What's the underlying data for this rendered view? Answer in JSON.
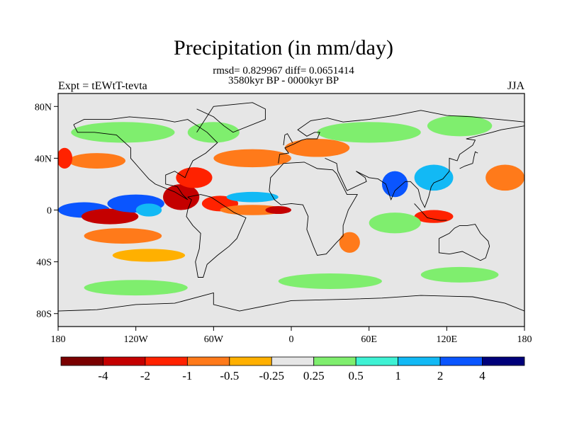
{
  "title": "Precipitation (in mm/day)",
  "stats": "rmsd= 0.829967 diff= 0.0651414",
  "period": "3580kyr BP - 0000kyr BP",
  "experiment": "Expt = tEWtT-tevta",
  "season": "JJA",
  "map": {
    "lon_range": [
      -180,
      180
    ],
    "lat_range": [
      -90,
      90
    ],
    "lat_ticks": [
      {
        "lat": 80,
        "label": "80N"
      },
      {
        "lat": 40,
        "label": "40N"
      },
      {
        "lat": 0,
        "label": "0"
      },
      {
        "lat": -40,
        "label": "40S"
      },
      {
        "lat": -80,
        "label": "80S"
      }
    ],
    "lon_ticks": [
      {
        "lon": -180,
        "label": "180"
      },
      {
        "lon": -120,
        "label": "120W"
      },
      {
        "lon": -60,
        "label": "60W"
      },
      {
        "lon": 0,
        "label": "0"
      },
      {
        "lon": 60,
        "label": "60E"
      },
      {
        "lon": 120,
        "label": "120E"
      },
      {
        "lon": 180,
        "label": "180"
      }
    ]
  },
  "colorbar": {
    "colors": [
      "#7a0000",
      "#c40000",
      "#ff2200",
      "#ff7a1a",
      "#ffb000",
      "#e6e6e6",
      "#7fee6e",
      "#3ef2d4",
      "#12b9f5",
      "#0a55ff",
      "#00007a"
    ],
    "labels": [
      "-4",
      "-2",
      "-1",
      "-0.5",
      "-0.25",
      "0.25",
      "0.5",
      "1",
      "2",
      "4"
    ]
  },
  "fields": [
    {
      "lon": -160,
      "lat": 0,
      "rlon": 20,
      "rlat": 6,
      "color": "#0a55ff"
    },
    {
      "lon": -140,
      "lat": -5,
      "rlon": 22,
      "rlat": 6,
      "color": "#c40000"
    },
    {
      "lon": -120,
      "lat": 5,
      "rlon": 22,
      "rlat": 7,
      "color": "#0a55ff"
    },
    {
      "lon": -110,
      "lat": 0,
      "rlon": 10,
      "rlat": 5,
      "color": "#12b9f5"
    },
    {
      "lon": -85,
      "lat": 10,
      "rlon": 14,
      "rlat": 10,
      "color": "#c40000"
    },
    {
      "lon": -75,
      "lat": 25,
      "rlon": 14,
      "rlat": 8,
      "color": "#ff2200"
    },
    {
      "lon": -55,
      "lat": 5,
      "rlon": 14,
      "rlat": 6,
      "color": "#ff2200"
    },
    {
      "lon": -30,
      "lat": 0,
      "rlon": 25,
      "rlat": 4,
      "color": "#ff7a1a"
    },
    {
      "lon": -10,
      "lat": 0,
      "rlon": 10,
      "rlat": 3,
      "color": "#c40000"
    },
    {
      "lon": -30,
      "lat": 10,
      "rlon": 20,
      "rlat": 4,
      "color": "#12b9f5"
    },
    {
      "lon": -130,
      "lat": -20,
      "rlon": 30,
      "rlat": 6,
      "color": "#ff7a1a"
    },
    {
      "lon": -110,
      "lat": -35,
      "rlon": 28,
      "rlat": 5,
      "color": "#ffb000"
    },
    {
      "lon": -150,
      "lat": 38,
      "rlon": 22,
      "rlat": 6,
      "color": "#ff7a1a"
    },
    {
      "lon": -175,
      "lat": 40,
      "rlon": 6,
      "rlat": 8,
      "color": "#ff2200"
    },
    {
      "lon": -30,
      "lat": 40,
      "rlon": 30,
      "rlat": 7,
      "color": "#ff7a1a"
    },
    {
      "lon": 20,
      "lat": 48,
      "rlon": 25,
      "rlat": 7,
      "color": "#ff7a1a"
    },
    {
      "lon": 45,
      "lat": -25,
      "rlon": 8,
      "rlat": 8,
      "color": "#ff7a1a"
    },
    {
      "lon": 80,
      "lat": 20,
      "rlon": 10,
      "rlat": 10,
      "color": "#0a55ff"
    },
    {
      "lon": 110,
      "lat": 25,
      "rlon": 15,
      "rlat": 10,
      "color": "#12b9f5"
    },
    {
      "lon": 110,
      "lat": -5,
      "rlon": 15,
      "rlat": 5,
      "color": "#ff2200"
    },
    {
      "lon": 165,
      "lat": 25,
      "rlon": 15,
      "rlat": 10,
      "color": "#ff7a1a"
    },
    {
      "lon": -130,
      "lat": 60,
      "rlon": 40,
      "rlat": 8,
      "color": "#7fee6e"
    },
    {
      "lon": -60,
      "lat": 60,
      "rlon": 20,
      "rlat": 8,
      "color": "#7fee6e"
    },
    {
      "lon": 60,
      "lat": 60,
      "rlon": 40,
      "rlat": 8,
      "color": "#7fee6e"
    },
    {
      "lon": 130,
      "lat": 65,
      "rlon": 25,
      "rlat": 8,
      "color": "#7fee6e"
    },
    {
      "lon": -120,
      "lat": -60,
      "rlon": 40,
      "rlat": 6,
      "color": "#7fee6e"
    },
    {
      "lon": 30,
      "lat": -55,
      "rlon": 40,
      "rlat": 6,
      "color": "#7fee6e"
    },
    {
      "lon": 130,
      "lat": -50,
      "rlon": 30,
      "rlat": 6,
      "color": "#7fee6e"
    },
    {
      "lon": 80,
      "lat": -10,
      "rlon": 20,
      "rlat": 8,
      "color": "#7fee6e"
    }
  ],
  "coastlines": [
    [
      [
        -168,
        66
      ],
      [
        -160,
        70
      ],
      [
        -140,
        70
      ],
      [
        -125,
        72
      ],
      [
        -100,
        70
      ],
      [
        -90,
        68
      ],
      [
        -80,
        70
      ],
      [
        -65,
        60
      ],
      [
        -57,
        52
      ],
      [
        -66,
        44
      ],
      [
        -76,
        38
      ],
      [
        -80,
        30
      ],
      [
        -82,
        25
      ],
      [
        -90,
        30
      ],
      [
        -97,
        27
      ],
      [
        -97,
        20
      ],
      [
        -88,
        18
      ],
      [
        -84,
        12
      ],
      [
        -80,
        8
      ],
      [
        -90,
        14
      ],
      [
        -105,
        20
      ],
      [
        -110,
        24
      ],
      [
        -117,
        32
      ],
      [
        -124,
        40
      ],
      [
        -124,
        48
      ],
      [
        -135,
        58
      ],
      [
        -152,
        60
      ],
      [
        -165,
        60
      ],
      [
        -168,
        66
      ]
    ],
    [
      [
        -80,
        10
      ],
      [
        -70,
        12
      ],
      [
        -62,
        10
      ],
      [
        -50,
        2
      ],
      [
        -44,
        -2
      ],
      [
        -35,
        -6
      ],
      [
        -39,
        -15
      ],
      [
        -42,
        -22
      ],
      [
        -48,
        -28
      ],
      [
        -57,
        -35
      ],
      [
        -65,
        -42
      ],
      [
        -68,
        -52
      ],
      [
        -72,
        -52
      ],
      [
        -74,
        -40
      ],
      [
        -71,
        -30
      ],
      [
        -70,
        -18
      ],
      [
        -76,
        -12
      ],
      [
        -81,
        -5
      ],
      [
        -80,
        0
      ],
      [
        -77,
        8
      ],
      [
        -80,
        10
      ]
    ],
    [
      [
        -73,
        60
      ],
      [
        -60,
        80
      ],
      [
        -30,
        83
      ],
      [
        -20,
        78
      ],
      [
        -20,
        70
      ],
      [
        -45,
        60
      ],
      [
        -52,
        65
      ],
      [
        -60,
        72
      ],
      [
        -73,
        78
      ]
    ],
    [
      [
        -17,
        15
      ],
      [
        -16,
        25
      ],
      [
        -6,
        36
      ],
      [
        10,
        37
      ],
      [
        20,
        32
      ],
      [
        32,
        31
      ],
      [
        35,
        28
      ],
      [
        43,
        12
      ],
      [
        51,
        12
      ],
      [
        44,
        0
      ],
      [
        40,
        -12
      ],
      [
        40,
        -20
      ],
      [
        35,
        -25
      ],
      [
        27,
        -34
      ],
      [
        20,
        -35
      ],
      [
        17,
        -28
      ],
      [
        12,
        -15
      ],
      [
        13,
        -5
      ],
      [
        9,
        4
      ],
      [
        0,
        5
      ],
      [
        -8,
        4
      ],
      [
        -13,
        8
      ],
      [
        -17,
        15
      ]
    ],
    [
      [
        -10,
        36
      ],
      [
        -9,
        43
      ],
      [
        -2,
        44
      ],
      [
        -5,
        48
      ],
      [
        2,
        51
      ],
      [
        8,
        54
      ],
      [
        12,
        55
      ],
      [
        20,
        55
      ],
      [
        22,
        60
      ],
      [
        18,
        60
      ],
      [
        12,
        57
      ],
      [
        5,
        62
      ],
      [
        15,
        69
      ],
      [
        28,
        71
      ],
      [
        40,
        68
      ],
      [
        60,
        70
      ],
      [
        80,
        73
      ],
      [
        100,
        77
      ],
      [
        120,
        73
      ],
      [
        140,
        72
      ],
      [
        160,
        70
      ],
      [
        180,
        68
      ]
    ],
    [
      [
        26,
        40
      ],
      [
        35,
        36
      ],
      [
        36,
        30
      ],
      [
        43,
        15
      ],
      [
        58,
        22
      ],
      [
        57,
        25
      ],
      [
        50,
        30
      ],
      [
        60,
        25
      ],
      [
        67,
        24
      ],
      [
        73,
        20
      ],
      [
        77,
        8
      ],
      [
        80,
        15
      ],
      [
        88,
        22
      ],
      [
        92,
        22
      ],
      [
        98,
        16
      ],
      [
        100,
        8
      ],
      [
        103,
        2
      ],
      [
        106,
        10
      ],
      [
        108,
        18
      ],
      [
        110,
        21
      ],
      [
        117,
        24
      ],
      [
        122,
        30
      ],
      [
        122,
        40
      ],
      [
        128,
        38
      ],
      [
        130,
        43
      ],
      [
        140,
        50
      ],
      [
        142,
        54
      ],
      [
        135,
        55
      ],
      [
        155,
        60
      ],
      [
        162,
        62
      ],
      [
        180,
        65
      ]
    ],
    [
      [
        114,
        -22
      ],
      [
        114,
        -33
      ],
      [
        122,
        -34
      ],
      [
        132,
        -32
      ],
      [
        138,
        -35
      ],
      [
        146,
        -39
      ],
      [
        150,
        -37
      ],
      [
        153,
        -28
      ],
      [
        152,
        -24
      ],
      [
        146,
        -18
      ],
      [
        142,
        -11
      ],
      [
        136,
        -12
      ],
      [
        130,
        -12
      ],
      [
        126,
        -14
      ],
      [
        122,
        -18
      ],
      [
        114,
        -22
      ]
    ],
    [
      [
        -180,
        -78
      ],
      [
        -150,
        -77
      ],
      [
        -120,
        -73
      ],
      [
        -90,
        -72
      ],
      [
        -60,
        -64
      ],
      [
        -60,
        -73
      ],
      [
        -40,
        -78
      ],
      [
        0,
        -70
      ],
      [
        40,
        -69
      ],
      [
        70,
        -68
      ],
      [
        100,
        -66
      ],
      [
        140,
        -67
      ],
      [
        165,
        -72
      ],
      [
        180,
        -78
      ]
    ],
    [
      [
        95,
        5
      ],
      [
        105,
        -6
      ],
      [
        115,
        -8
      ],
      [
        120,
        -8
      ]
    ],
    [
      [
        130,
        32
      ],
      [
        134,
        34
      ],
      [
        140,
        36
      ],
      [
        141,
        41
      ],
      [
        142,
        45
      ],
      [
        144,
        44
      ]
    ],
    [
      [
        -6,
        50
      ],
      [
        -5,
        58
      ],
      [
        -3,
        59
      ],
      [
        1,
        52
      ]
    ]
  ]
}
